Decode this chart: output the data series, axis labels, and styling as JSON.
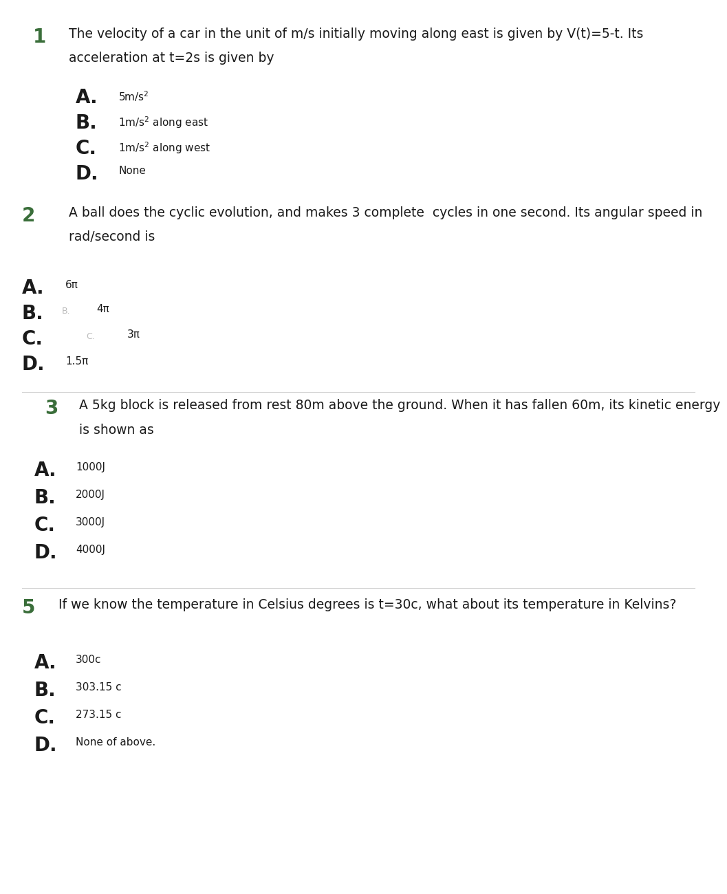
{
  "bg_color": "#ffffff",
  "text_color": "#1a1a1a",
  "num_color": "#3a6e3a",
  "q1_text": "The velocity of a car in the unit of m/s initially moving along east is given by V(t)=5-t. Its",
  "q1_text2": "acceleration at t=2s is given by",
  "q1_opts_letters": [
    "A.",
    "B.",
    "C.",
    "D."
  ],
  "q1_opts_texts": [
    "5m/s$^2$",
    "1m/s$^2$ along east",
    "1m/s$^2$ along west",
    "None"
  ],
  "q2_text": "A ball does the cyclic evolution, and makes 3 complete  cycles in one second. Its angular speed in",
  "q2_text2": "rad/second is",
  "q2_opts_letters": [
    "A.",
    "B.",
    "C.",
    "D."
  ],
  "q2_opts_texts": [
    "6π",
    "4π",
    "3π",
    "1.5π"
  ],
  "q3_text": "A 5kg block is released from rest 80m above the ground. When it has fallen 60m, its kinetic energy",
  "q3_text2": "is shown as",
  "q3_opts_letters": [
    "A.",
    "B.",
    "C.",
    "D."
  ],
  "q3_opts_texts": [
    "1000J",
    "2000J",
    "3000J",
    "4000J"
  ],
  "q5_text": "If we know the temperature in Celsius degrees is t=30c, what about its temperature in Kelvins?",
  "q5_opts_letters": [
    "A.",
    "B.",
    "C.",
    "D."
  ],
  "q5_opts_texts": [
    "300c",
    "303.15 c",
    "273.15 c",
    "None of above."
  ],
  "font_family": "DejaVu Sans"
}
